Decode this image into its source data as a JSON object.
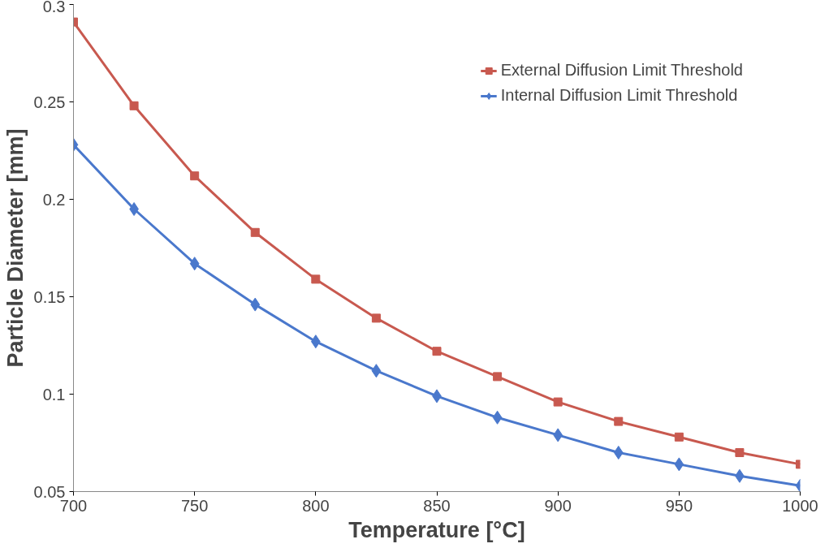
{
  "chart_data": {
    "type": "line",
    "xlabel": "Temperature [°C]",
    "ylabel": "Particle Diameter [mm]",
    "x": [
      700,
      725,
      750,
      775,
      800,
      825,
      850,
      875,
      900,
      925,
      950,
      975,
      1000
    ],
    "series": [
      {
        "name": "External Diffusion Limit Threshold",
        "color": "#c8594f",
        "marker": "square",
        "values": [
          0.291,
          0.248,
          0.212,
          0.183,
          0.159,
          0.139,
          0.122,
          0.109,
          0.096,
          0.086,
          0.078,
          0.07,
          0.064
        ]
      },
      {
        "name": "Internal Diffusion Limit Threshold",
        "color": "#4a78cc",
        "marker": "diamond",
        "values": [
          0.228,
          0.195,
          0.167,
          0.146,
          0.127,
          0.112,
          0.099,
          0.088,
          0.079,
          0.07,
          0.064,
          0.058,
          0.053
        ]
      }
    ],
    "xlim": [
      700,
      1000
    ],
    "xticks": [
      700,
      750,
      800,
      850,
      900,
      950,
      1000
    ],
    "ylim": [
      0.05,
      0.3
    ],
    "yticks": [
      0.05,
      0.1,
      0.15,
      0.2,
      0.25,
      0.3
    ],
    "grid": false,
    "legend": "top right",
    "line_style": "solid"
  }
}
